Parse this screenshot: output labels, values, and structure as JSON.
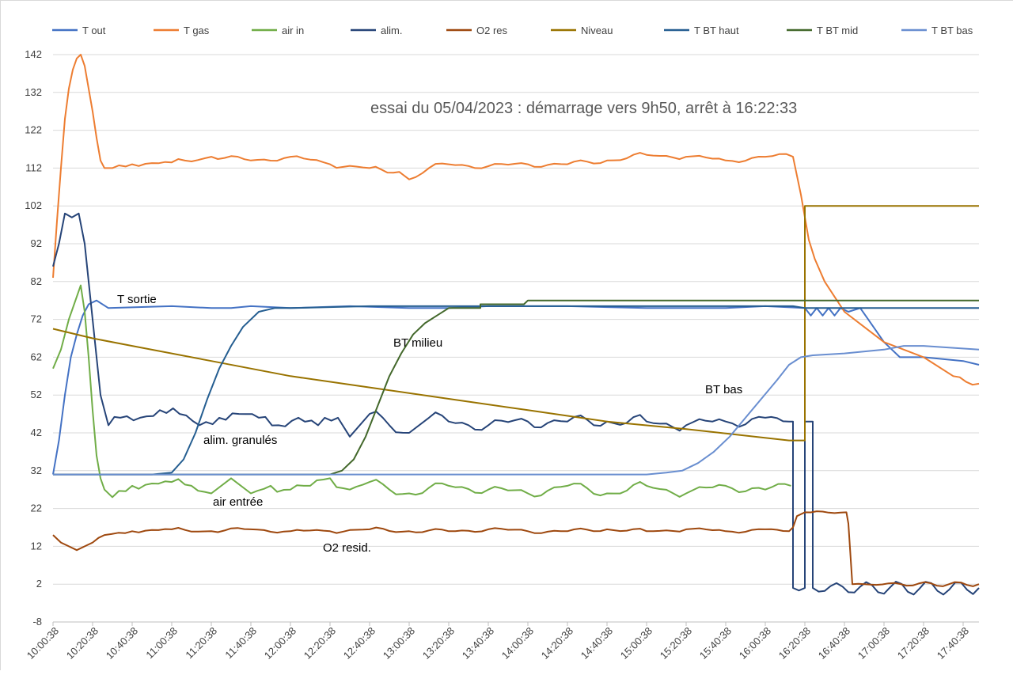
{
  "chart_data": {
    "type": "line",
    "title": "essai du 05/04/2023 : démarrage vers 9h50, arrêt à 16:22:33",
    "xlabel": "",
    "ylabel": "",
    "x_unit": "minutes since 10:00:38",
    "xlim": [
      0,
      468
    ],
    "ylim": [
      -8,
      142
    ],
    "y_ticks": [
      142,
      132,
      122,
      112,
      102,
      92,
      82,
      72,
      62,
      52,
      42,
      32,
      22,
      12,
      2,
      -8
    ],
    "y_tick_labels": [
      "142",
      "132",
      "122",
      "112",
      "102",
      "92",
      "82",
      "72",
      "62",
      "52",
      "42",
      "32",
      "22",
      "12",
      "2",
      "-8"
    ],
    "x_tick_labels": [
      "10:00:38",
      "10:20:38",
      "10:40:38",
      "11:00:38",
      "11:20:38",
      "11:40:38",
      "12:00:38",
      "12:20:38",
      "12:40:38",
      "13:00:38",
      "13:20:38",
      "13:40:38",
      "14:00:38",
      "14:20:38",
      "14:40:38",
      "15:00:38",
      "15:20:38",
      "15:40:38",
      "16:00:38",
      "16:20:38",
      "16:40:38",
      "17:00:38",
      "17:20:38",
      "17:40:38"
    ],
    "legend_position": "top",
    "grid": "horizontal",
    "series": [
      {
        "name": "T out",
        "color": "#4472C4",
        "points": [
          [
            0,
            31
          ],
          [
            3,
            40
          ],
          [
            6,
            52
          ],
          [
            9,
            62
          ],
          [
            12,
            68
          ],
          [
            15,
            73
          ],
          [
            18,
            76
          ],
          [
            22,
            77
          ],
          [
            28,
            75
          ],
          [
            60,
            75.5
          ],
          [
            80,
            75
          ],
          [
            90,
            75
          ],
          [
            100,
            75.5
          ],
          [
            120,
            75
          ],
          [
            150,
            75.5
          ],
          [
            180,
            75
          ],
          [
            200,
            75
          ],
          [
            220,
            75.5
          ],
          [
            260,
            75.5
          ],
          [
            300,
            75
          ],
          [
            340,
            75
          ],
          [
            360,
            75.5
          ],
          [
            380,
            75
          ],
          [
            383,
            73
          ],
          [
            386,
            75
          ],
          [
            389,
            73
          ],
          [
            392,
            75
          ],
          [
            395,
            73
          ],
          [
            398,
            75
          ],
          [
            402,
            74
          ],
          [
            408,
            75
          ],
          [
            412,
            72
          ],
          [
            416,
            69
          ],
          [
            420,
            66
          ],
          [
            424,
            64
          ],
          [
            428,
            62
          ],
          [
            432,
            62
          ],
          [
            440,
            62
          ],
          [
            460,
            61
          ],
          [
            468,
            60
          ]
        ]
      },
      {
        "name": "T gas",
        "color": "#ED7D31",
        "points": [
          [
            0,
            83
          ],
          [
            2,
            98
          ],
          [
            4,
            112
          ],
          [
            6,
            125
          ],
          [
            8,
            133
          ],
          [
            10,
            138
          ],
          [
            12,
            141
          ],
          [
            14,
            142
          ],
          [
            16,
            139
          ],
          [
            18,
            133
          ],
          [
            20,
            127
          ],
          [
            22,
            120
          ],
          [
            24,
            114
          ],
          [
            26,
            112
          ],
          [
            30,
            112
          ],
          [
            40,
            113
          ],
          [
            60,
            113.5
          ],
          [
            80,
            115
          ],
          [
            100,
            114
          ],
          [
            120,
            115
          ],
          [
            140,
            113
          ],
          [
            160,
            112
          ],
          [
            175,
            111
          ],
          [
            180,
            109
          ],
          [
            190,
            112
          ],
          [
            200,
            113
          ],
          [
            220,
            112.5
          ],
          [
            240,
            113
          ],
          [
            260,
            113
          ],
          [
            280,
            114
          ],
          [
            300,
            115.5
          ],
          [
            320,
            115
          ],
          [
            340,
            114
          ],
          [
            360,
            115
          ],
          [
            374,
            115
          ],
          [
            378,
            105
          ],
          [
            382,
            93
          ],
          [
            385,
            88
          ],
          [
            390,
            82
          ],
          [
            395,
            78
          ],
          [
            400,
            74
          ],
          [
            410,
            70
          ],
          [
            420,
            66
          ],
          [
            440,
            62
          ],
          [
            455,
            57
          ],
          [
            468,
            55
          ]
        ]
      },
      {
        "name": "air in",
        "color": "#70AD47",
        "points": [
          [
            0,
            59
          ],
          [
            4,
            64
          ],
          [
            8,
            72
          ],
          [
            12,
            78
          ],
          [
            14,
            81
          ],
          [
            16,
            74
          ],
          [
            18,
            62
          ],
          [
            20,
            48
          ],
          [
            22,
            36
          ],
          [
            24,
            30
          ],
          [
            26,
            27
          ],
          [
            30,
            25
          ],
          [
            40,
            28
          ],
          [
            60,
            29
          ],
          [
            70,
            28
          ],
          [
            80,
            26
          ],
          [
            90,
            30
          ],
          [
            100,
            26
          ],
          [
            110,
            28
          ],
          [
            120,
            27
          ],
          [
            130,
            28
          ],
          [
            140,
            30
          ],
          [
            150,
            27
          ],
          [
            160,
            29
          ],
          [
            170,
            27
          ],
          [
            180,
            26
          ],
          [
            200,
            28
          ],
          [
            220,
            27
          ],
          [
            240,
            26
          ],
          [
            260,
            28
          ],
          [
            280,
            26
          ],
          [
            300,
            28
          ],
          [
            320,
            26
          ],
          [
            340,
            28
          ],
          [
            360,
            27
          ],
          [
            373,
            28
          ]
        ]
      },
      {
        "name": "alim.",
        "color": "#264478",
        "points": [
          [
            0,
            86
          ],
          [
            3,
            92
          ],
          [
            6,
            100
          ],
          [
            13,
            100
          ],
          [
            16,
            92
          ],
          [
            20,
            72
          ],
          [
            24,
            52
          ],
          [
            28,
            44
          ],
          [
            34,
            46
          ],
          [
            44,
            46
          ],
          [
            54,
            48
          ],
          [
            64,
            47
          ],
          [
            74,
            44
          ],
          [
            84,
            46
          ],
          [
            94,
            47
          ],
          [
            104,
            46
          ],
          [
            114,
            44
          ],
          [
            124,
            46
          ],
          [
            134,
            44
          ],
          [
            144,
            46
          ],
          [
            150,
            41
          ],
          [
            160,
            47
          ],
          [
            170,
            44
          ],
          [
            180,
            42
          ],
          [
            190,
            46
          ],
          [
            200,
            45
          ],
          [
            220,
            44
          ],
          [
            240,
            45
          ],
          [
            260,
            45
          ],
          [
            280,
            45
          ],
          [
            300,
            45
          ],
          [
            320,
            44
          ],
          [
            340,
            45
          ],
          [
            360,
            46
          ],
          [
            372,
            45
          ],
          [
            374,
            45
          ],
          [
            374,
            1
          ],
          [
            380,
            1
          ],
          [
            380,
            45
          ],
          [
            384,
            45
          ],
          [
            384,
            1
          ],
          [
            468,
            1
          ]
        ]
      },
      {
        "name": "O2 res",
        "color": "#9E480E",
        "points": [
          [
            0,
            15
          ],
          [
            4,
            13
          ],
          [
            8,
            12
          ],
          [
            12,
            11
          ],
          [
            16,
            12
          ],
          [
            20,
            13
          ],
          [
            26,
            15
          ],
          [
            40,
            16
          ],
          [
            60,
            16.5
          ],
          [
            80,
            16
          ],
          [
            100,
            16.5
          ],
          [
            120,
            16
          ],
          [
            140,
            16
          ],
          [
            160,
            16.5
          ],
          [
            180,
            16
          ],
          [
            200,
            16
          ],
          [
            220,
            16.5
          ],
          [
            240,
            16
          ],
          [
            260,
            16
          ],
          [
            280,
            16.5
          ],
          [
            300,
            16
          ],
          [
            320,
            16.5
          ],
          [
            340,
            16
          ],
          [
            360,
            16.5
          ],
          [
            372,
            16
          ],
          [
            374,
            17
          ],
          [
            376,
            20
          ],
          [
            380,
            21
          ],
          [
            401,
            21
          ],
          [
            402,
            18
          ],
          [
            404,
            2
          ],
          [
            468,
            2
          ]
        ]
      },
      {
        "name": "Niveau",
        "color": "#997300",
        "points": [
          [
            0,
            69.5
          ],
          [
            20,
            67
          ],
          [
            40,
            65
          ],
          [
            80,
            61
          ],
          [
            120,
            57
          ],
          [
            160,
            54
          ],
          [
            200,
            51
          ],
          [
            240,
            48
          ],
          [
            280,
            45
          ],
          [
            320,
            43
          ],
          [
            372,
            40
          ],
          [
            380,
            40
          ],
          [
            380,
            102
          ],
          [
            468,
            102
          ]
        ]
      },
      {
        "name": "T BT haut",
        "color": "#255E91",
        "points": [
          [
            0,
            31
          ],
          [
            50,
            31
          ],
          [
            60,
            31.5
          ],
          [
            66,
            35
          ],
          [
            72,
            42
          ],
          [
            78,
            51
          ],
          [
            84,
            59
          ],
          [
            90,
            65
          ],
          [
            96,
            70
          ],
          [
            104,
            74
          ],
          [
            112,
            75
          ],
          [
            120,
            75
          ],
          [
            160,
            75.5
          ],
          [
            200,
            75.5
          ],
          [
            240,
            75.5
          ],
          [
            300,
            75.5
          ],
          [
            374,
            75.5
          ],
          [
            380,
            75
          ],
          [
            468,
            75
          ]
        ]
      },
      {
        "name": "T BT mid",
        "color": "#43682B",
        "points": [
          [
            0,
            31
          ],
          [
            140,
            31
          ],
          [
            146,
            32
          ],
          [
            152,
            35
          ],
          [
            158,
            41
          ],
          [
            164,
            49
          ],
          [
            170,
            57
          ],
          [
            176,
            63
          ],
          [
            182,
            68
          ],
          [
            188,
            71
          ],
          [
            194,
            73
          ],
          [
            200,
            75
          ],
          [
            216,
            75
          ],
          [
            216,
            76
          ],
          [
            238,
            76
          ],
          [
            240,
            77
          ],
          [
            380,
            77
          ],
          [
            384,
            77
          ],
          [
            420,
            77
          ],
          [
            468,
            77
          ]
        ]
      },
      {
        "name": "T BT bas",
        "color": "#698ED0",
        "points": [
          [
            0,
            31
          ],
          [
            300,
            31
          ],
          [
            310,
            31.5
          ],
          [
            318,
            32
          ],
          [
            326,
            34
          ],
          [
            334,
            37
          ],
          [
            342,
            41
          ],
          [
            350,
            46
          ],
          [
            358,
            51
          ],
          [
            366,
            56
          ],
          [
            372,
            60
          ],
          [
            378,
            62
          ],
          [
            384,
            62.5
          ],
          [
            400,
            63
          ],
          [
            420,
            64
          ],
          [
            430,
            65
          ],
          [
            440,
            65
          ],
          [
            468,
            64
          ]
        ]
      }
    ],
    "annotations": [
      "T sortie",
      "BT milieu",
      "BT bas",
      "alim. granulés",
      "air entrée",
      "O2 resid."
    ]
  }
}
